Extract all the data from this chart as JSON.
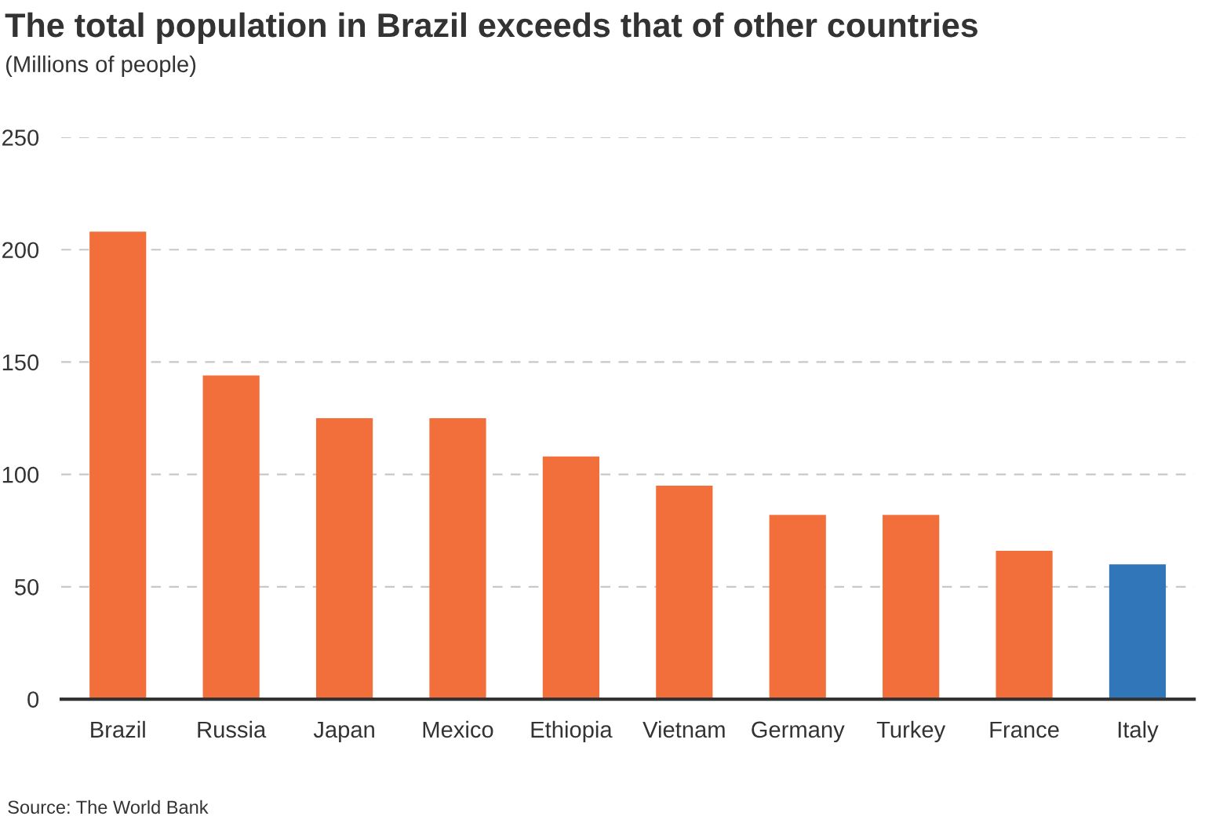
{
  "chart_data": {
    "type": "bar",
    "title": "The total population in Brazil exceeds that of other countries",
    "subtitle": "(Millions of people)",
    "categories": [
      "Brazil",
      "Russia",
      "Japan",
      "Mexico",
      "Ethiopia",
      "Vietnam",
      "Germany",
      "Turkey",
      "France",
      "Italy"
    ],
    "values": [
      208,
      144,
      125,
      125,
      108,
      95,
      82,
      82,
      66,
      60
    ],
    "colors": [
      "#f26e3a",
      "#f26e3a",
      "#f26e3a",
      "#f26e3a",
      "#f26e3a",
      "#f26e3a",
      "#f26e3a",
      "#f26e3a",
      "#f26e3a",
      "#3176b8"
    ],
    "ylim": [
      0,
      250
    ],
    "yticks": [
      0,
      50,
      100,
      150,
      200,
      250
    ],
    "grid": "y",
    "annotations": [
      "Source: The World Bank"
    ]
  }
}
